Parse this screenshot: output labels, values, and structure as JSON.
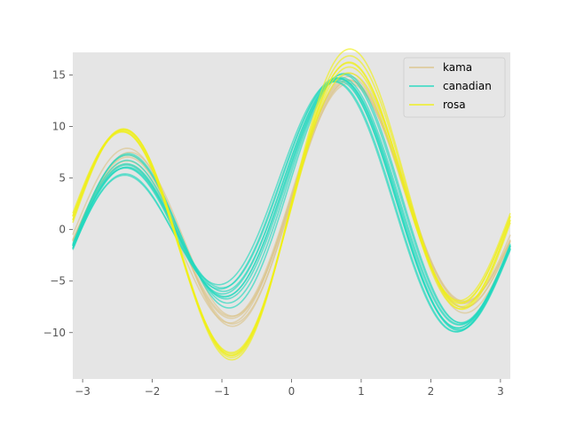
{
  "chart_data": {
    "type": "line",
    "title": "",
    "xlabel": "",
    "ylabel": "",
    "xlim": [
      -3.1416,
      3.1416
    ],
    "ylim": [
      -14.5,
      17.2
    ],
    "x_ticks": [
      -3,
      -2,
      -1,
      0,
      1,
      2,
      3
    ],
    "y_ticks": [
      -10,
      -5,
      0,
      5,
      10,
      15
    ],
    "grid": false,
    "background": "#e5e5e5",
    "legend_position": "top-right",
    "plot_kind": "andrews-curves",
    "legend": [
      {
        "name": "kama",
        "color": "#dcc58c"
      },
      {
        "name": "canadian",
        "color": "#22d9bf"
      },
      {
        "name": "rosa",
        "color": "#f0f016"
      }
    ],
    "series": [
      {
        "name": "kama",
        "color": "#dcc58c",
        "coefficients": [
          [
            1.9,
            3.2,
            1.9,
            9.5,
            -0.6
          ],
          [
            2.1,
            3.0,
            2.3,
            9.3,
            -0.3
          ],
          [
            2.4,
            3.4,
            1.7,
            9.8,
            -0.5
          ],
          [
            1.8,
            3.6,
            2.1,
            9.1,
            -0.2
          ],
          [
            2.2,
            2.8,
            2.4,
            9.6,
            -0.7
          ],
          [
            2.0,
            3.3,
            2.0,
            9.0,
            -0.4
          ]
        ]
      },
      {
        "name": "canadian",
        "color": "#22d9bf",
        "coefficients": [
          [
            1.8,
            1.5,
            4.3,
            8.8,
            1.4
          ],
          [
            2.1,
            1.8,
            3.8,
            9.2,
            0.8
          ],
          [
            1.6,
            1.2,
            4.8,
            8.5,
            1.8
          ],
          [
            2.3,
            2.0,
            3.5,
            9.5,
            0.5
          ],
          [
            1.9,
            1.4,
            4.5,
            8.9,
            1.2
          ],
          [
            2.0,
            1.7,
            4.0,
            9.0,
            1.0
          ],
          [
            1.7,
            1.0,
            5.0,
            8.3,
            2.0
          ],
          [
            2.2,
            2.2,
            3.3,
            9.7,
            0.2
          ],
          [
            1.8,
            1.6,
            4.2,
            9.1,
            1.1
          ],
          [
            2.1,
            1.3,
            4.6,
            8.7,
            1.5
          ]
        ]
      },
      {
        "name": "rosa",
        "color": "#f0f016",
        "coefficients": [
          [
            2.2,
            4.0,
            0.5,
            11.0,
            0.2
          ],
          [
            2.4,
            4.3,
            0.8,
            11.5,
            0.0
          ],
          [
            2.1,
            3.8,
            0.3,
            10.8,
            0.4
          ],
          [
            2.5,
            4.5,
            1.0,
            11.8,
            -0.1
          ],
          [
            2.3,
            4.1,
            0.6,
            11.2,
            0.3
          ],
          [
            2.2,
            3.9,
            0.7,
            11.4,
            0.1
          ]
        ]
      }
    ]
  }
}
